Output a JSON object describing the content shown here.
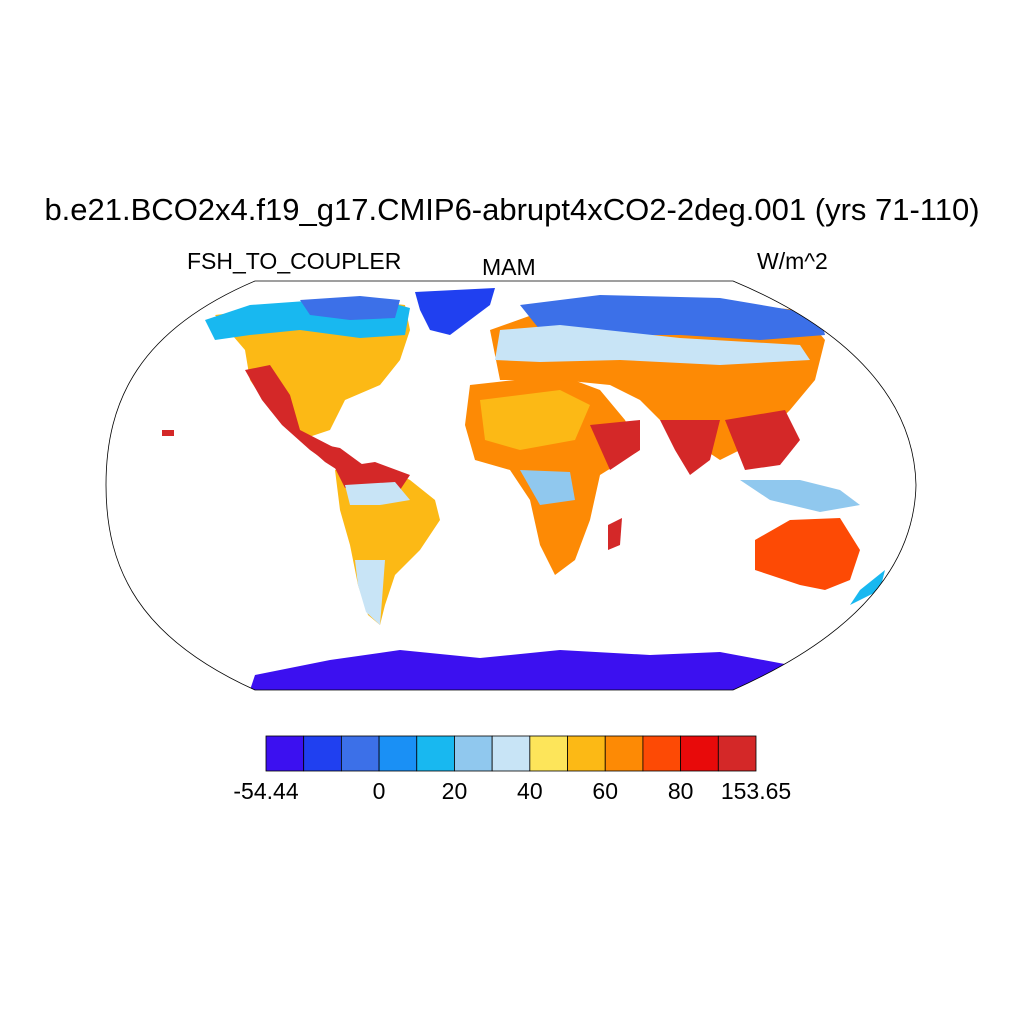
{
  "title": "b.e21.BCO2x4.f19_g17.CMIP6-abrupt4xCO2-2deg.001 (yrs 71-110)",
  "left_label": "FSH_TO_COUPLER",
  "center_label": "MAM",
  "right_label": "W/m^2",
  "colorbar": {
    "colors": [
      "#3c10f0",
      "#2040f0",
      "#3c70e8",
      "#1a90f5",
      "#18b8f0",
      "#90c8ee",
      "#c8e4f6",
      "#fde55a",
      "#fcb915",
      "#fd8a05",
      "#fd4a05",
      "#e80a0a",
      "#d42828"
    ],
    "labels": [
      "-54.44",
      "0",
      "20",
      "40",
      "60",
      "80",
      "153.65"
    ]
  },
  "map": {
    "projection": "Robinson",
    "regions": [
      {
        "name": "north-america",
        "color": "#fcb915"
      },
      {
        "name": "greenland",
        "color": "#2040f0"
      },
      {
        "name": "south-america",
        "color": "#fcb915"
      },
      {
        "name": "africa",
        "color": "#fd8a05"
      },
      {
        "name": "eurasia",
        "color": "#fd8a05"
      },
      {
        "name": "australia",
        "color": "#fd4a05"
      },
      {
        "name": "antarctica",
        "color": "#3c10f0"
      }
    ]
  }
}
